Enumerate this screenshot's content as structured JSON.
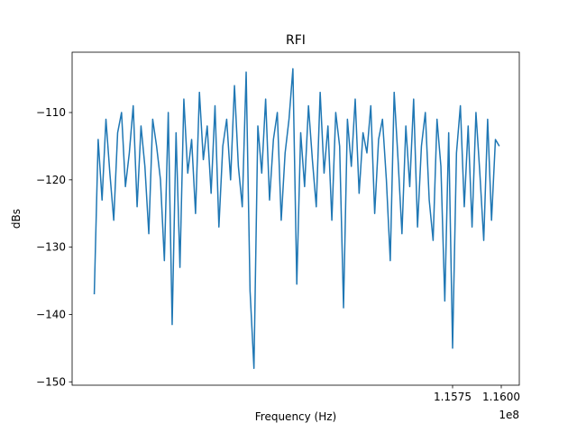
{
  "chart_data": {
    "type": "line",
    "title": "RFI",
    "xlabel": "Frequency (Hz)",
    "ylabel": "dBs",
    "x_offset_text": "1e8",
    "xlim": [
      113796300,
      116092600
    ],
    "ylim": [
      -150.5,
      -101.04
    ],
    "xticks": [
      {
        "value": 115750000,
        "label": "1.1575"
      },
      {
        "value": 116000000,
        "label": "1.1600"
      }
    ],
    "yticks": [
      {
        "value": -150,
        "label": "−150"
      },
      {
        "value": -140,
        "label": "−140"
      },
      {
        "value": -130,
        "label": "−130"
      },
      {
        "value": -120,
        "label": "−120"
      },
      {
        "value": -110,
        "label": "−110"
      }
    ],
    "series": [
      {
        "color": "#1f77b4",
        "x": [
          113910000,
          113930000,
          113950000,
          113970000,
          113990000,
          114010000,
          114030000,
          114050000,
          114070000,
          114090000,
          114110000,
          114130000,
          114150000,
          114170000,
          114190000,
          114210000,
          114230000,
          114250000,
          114270000,
          114290000,
          114310000,
          114330000,
          114350000,
          114370000,
          114390000,
          114410000,
          114430000,
          114450000,
          114470000,
          114490000,
          114510000,
          114530000,
          114550000,
          114570000,
          114590000,
          114610000,
          114630000,
          114650000,
          114670000,
          114690000,
          114710000,
          114730000,
          114750000,
          114770000,
          114790000,
          114810000,
          114830000,
          114850000,
          114870000,
          114890000,
          114910000,
          114930000,
          114950000,
          114970000,
          114990000,
          115010000,
          115030000,
          115050000,
          115070000,
          115090000,
          115110000,
          115130000,
          115150000,
          115170000,
          115190000,
          115210000,
          115230000,
          115250000,
          115270000,
          115290000,
          115310000,
          115330000,
          115350000,
          115370000,
          115390000,
          115410000,
          115430000,
          115450000,
          115470000,
          115490000,
          115510000,
          115530000,
          115550000,
          115570000,
          115590000,
          115610000,
          115630000,
          115650000,
          115670000,
          115690000,
          115710000,
          115730000,
          115750000,
          115770000,
          115790000,
          115810000,
          115830000,
          115850000,
          115870000,
          115890000,
          115910000,
          115930000,
          115950000,
          115970000,
          115990000
        ],
        "values": [
          -137,
          -114,
          -123,
          -111,
          -119,
          -126,
          -113,
          -110,
          -121,
          -116,
          -109,
          -124,
          -112,
          -118,
          -128,
          -111,
          -115,
          -120,
          -132,
          -110,
          -141.5,
          -113,
          -133,
          -108,
          -119,
          -114,
          -125,
          -107,
          -117,
          -112,
          -122,
          -109,
          -127,
          -115,
          -111,
          -120,
          -106,
          -118,
          -124,
          -104,
          -136.5,
          -148,
          -112,
          -119,
          -108,
          -123,
          -114,
          -110,
          -126,
          -116,
          -111,
          -103.5,
          -135.5,
          -113,
          -121,
          -109,
          -117,
          -124,
          -107,
          -119,
          -112,
          -126,
          -110,
          -115,
          -139,
          -111,
          -118,
          -108,
          -122,
          -113,
          -116,
          -109,
          -125,
          -114,
          -111,
          -120,
          -132,
          -107,
          -117,
          -128,
          -112,
          -121,
          -108,
          -127,
          -115,
          -110,
          -123,
          -129,
          -111,
          -118,
          -138,
          -113,
          -145,
          -116,
          -109,
          -124,
          -112,
          -127,
          -110,
          -119,
          -129,
          -111,
          -126,
          -114,
          -115
        ]
      }
    ]
  }
}
